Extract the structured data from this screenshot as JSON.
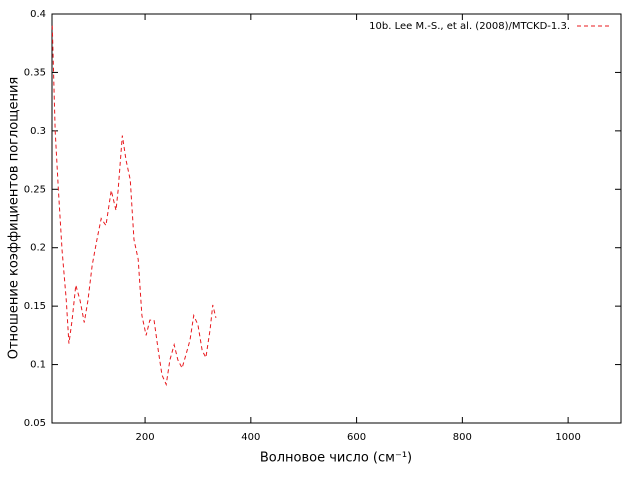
{
  "chart_data": {
    "type": "line",
    "xlabel": "Волновое число (см⁻¹)",
    "ylabel": "Отношение коэффициентов поглощения",
    "xlim": [
      24,
      1100
    ],
    "xticks": [
      200,
      400,
      600,
      800,
      1000
    ],
    "ylim": [
      0.05,
      0.4
    ],
    "yticks": [
      0.05,
      0.1,
      0.15,
      0.2,
      0.25,
      0.3,
      0.35,
      0.4
    ],
    "legend": "top-right",
    "grid": false,
    "series": [
      {
        "name": "10b. Lee M.-S., et al. (2008)/MTCKD-1.3.",
        "color": "#e8191e",
        "dashed": true,
        "x": [
          24.5,
          30,
          36,
          43,
          51,
          56,
          62,
          69,
          77,
          85,
          92,
          100,
          109,
          117,
          126,
          136,
          145,
          149,
          157,
          164,
          172,
          179,
          187,
          194,
          202,
          209,
          217,
          225,
          232,
          240,
          247,
          255,
          262,
          270,
          277,
          285,
          292,
          300,
          308,
          315,
          323,
          328,
          334
        ],
        "values": [
          0.39,
          0.3,
          0.25,
          0.198,
          0.155,
          0.118,
          0.138,
          0.168,
          0.155,
          0.136,
          0.155,
          0.185,
          0.207,
          0.225,
          0.219,
          0.249,
          0.232,
          0.249,
          0.296,
          0.275,
          0.258,
          0.207,
          0.19,
          0.142,
          0.125,
          0.138,
          0.138,
          0.112,
          0.091,
          0.083,
          0.104,
          0.117,
          0.104,
          0.097,
          0.108,
          0.121,
          0.142,
          0.134,
          0.112,
          0.106,
          0.13,
          0.151,
          0.14
        ]
      }
    ]
  }
}
